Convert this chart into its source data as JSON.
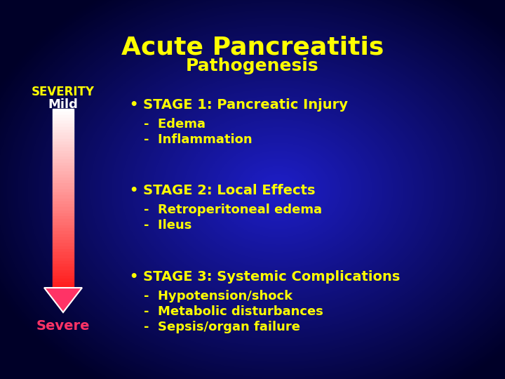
{
  "title_main": "Acute Pancreatitis",
  "title_sub": "Pathogenesis",
  "title_main_color": "#FFFF00",
  "title_sub_color": "#FFFF00",
  "severity_label": "SEVERITY",
  "mild_label": "Mild",
  "severe_label": "Severe",
  "severity_color": "#FFFF00",
  "mild_color": "#FFFFFF",
  "severe_color": "#FF3366",
  "stage_color": "#FFFF00",
  "sub_color": "#FFFF00",
  "stages": [
    {
      "bullet": "• STAGE 1: Pancreatic Injury",
      "items": [
        "-  Edema",
        "-  Inflammation"
      ]
    },
    {
      "bullet": "• STAGE 2: Local Effects",
      "items": [
        "-  Retroperitoneal edema",
        "-  Ileus"
      ]
    },
    {
      "bullet": "• STAGE 3: Systemic Complications",
      "items": [
        "-  Hypotension/shock",
        "-  Metabolic disturbances",
        "-  Sepsis/organ failure"
      ]
    }
  ],
  "title_main_fontsize": 26,
  "title_sub_fontsize": 18,
  "severity_fontsize": 12,
  "mild_fontsize": 13,
  "severe_fontsize": 14,
  "stage_fontsize": 14,
  "sub_fontsize": 13
}
